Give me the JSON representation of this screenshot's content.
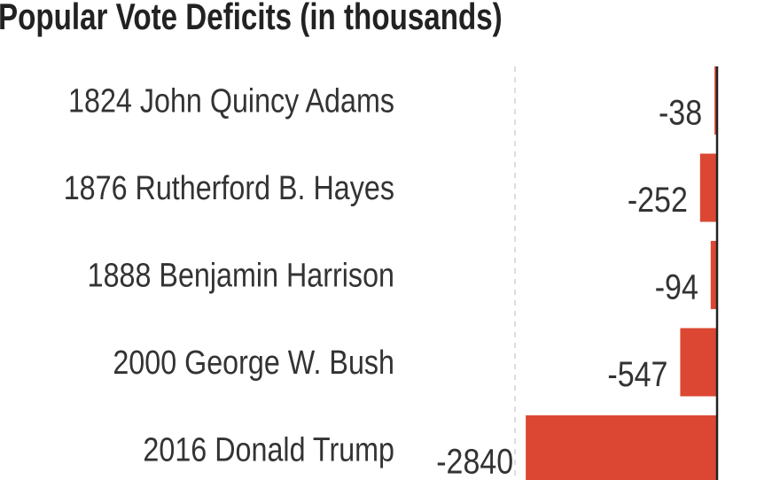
{
  "chart_data": {
    "type": "bar",
    "orientation": "horizontal",
    "title": "Popular Vote Deficits (in thousands)",
    "categories": [
      "1824 John Quincy Adams",
      "1876 Rutherford B. Hayes",
      "1888 Benjamin Harrison",
      "2000 George W. Bush",
      "2016 Donald Trump"
    ],
    "values": [
      -38,
      -252,
      -94,
      -547,
      -2840
    ],
    "value_labels": [
      "-38",
      "-252",
      "-94",
      "-547",
      "-2840"
    ],
    "xlim": [
      -3000,
      0
    ],
    "grid": true,
    "xlabel": "",
    "ylabel": "",
    "bar_color": "#db4733",
    "axis_color": "#222222"
  }
}
